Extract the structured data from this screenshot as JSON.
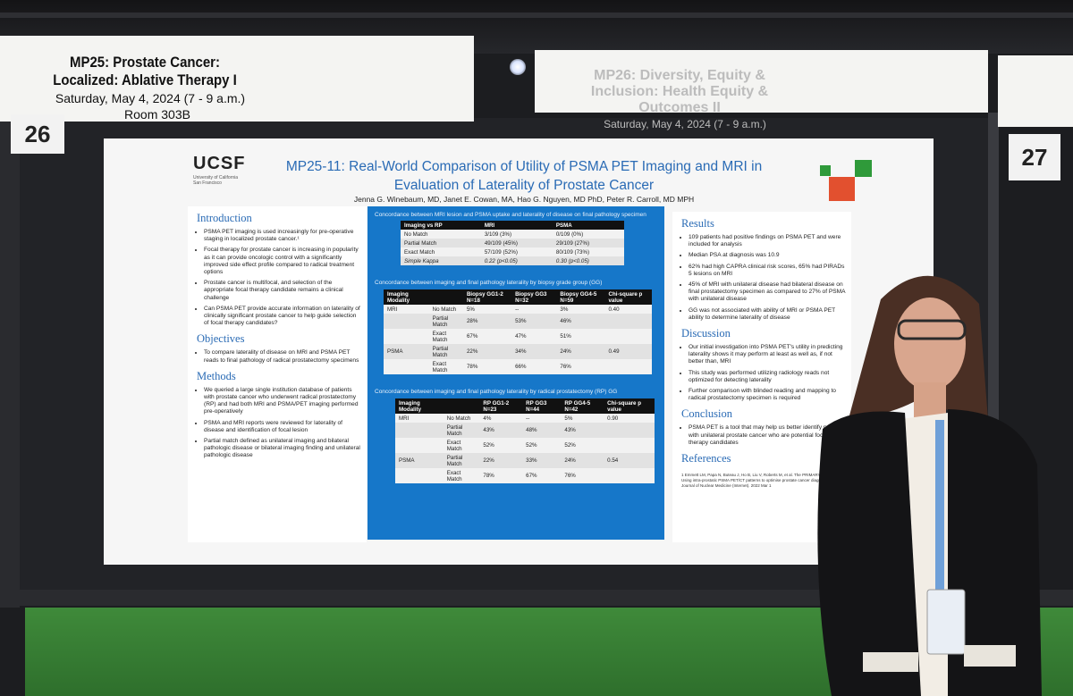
{
  "session_sign": {
    "title": "MP25: Prostate Cancer: Localized: Ablative Therapy I",
    "date": "Saturday, May 4, 2024 (7 - 9 a.m.)",
    "room": "Room 303B"
  },
  "next_sign": {
    "title": "MP26: Diversity, Equity & Inclusion: Health Equity & Outcomes II",
    "date": "Saturday, May 4, 2024 (7 - 9 a.m.)"
  },
  "board_numbers": [
    "26",
    "27"
  ],
  "poster": {
    "logo_text": "UCSF",
    "logo_subtext": "University of California San Francisco",
    "title": "MP25-11: Real-World Comparison of Utility of PSMA PET Imaging and MRI in Evaluation of Laterality of Prostate Cancer",
    "authors": "Jenna G. Winebaum, MD, Janet E. Cowan, MA, Hao G. Nguyen, MD PhD, Peter R. Carroll, MD MPH",
    "introduction": {
      "heading": "Introduction",
      "bullets": [
        "PSMA PET imaging is used increasingly for pre-operative staging in localized prostate cancer.¹",
        "Focal therapy for prostate cancer is increasing in popularity as it can provide oncologic control with a significantly improved side effect profile compared to radical treatment options",
        "Prostate cancer is multifocal, and selection of the appropriate focal therapy candidate remains a clinical challenge",
        "Can PSMA PET provide accurate information on laterality of clinically significant prostate cancer to help guide selection of focal therapy candidates?"
      ]
    },
    "objectives": {
      "heading": "Objectives",
      "bullets": [
        "To compare laterality of disease on MRI and PSMA PET reads to final pathology of radical prostatectomy specimens"
      ]
    },
    "methods": {
      "heading": "Methods",
      "bullets": [
        "We queried a large single institution database of patients with prostate cancer who underwent radical prostatectomy (RP) and had both MRI and PSMA/PET imaging performed pre-operatively",
        "PSMA and MRI reports were reviewed for laterality of disease and identification of focal lesion",
        "Partial match defined as unilateral imaging and bilateral pathologic disease or bilateral imaging finding and unilateral pathologic disease"
      ]
    },
    "table1": {
      "caption": "Concordance between MRI lesion and PSMA uptake and laterality of disease on final pathology specimen",
      "headers": [
        "Imaging vs RP",
        "MRI",
        "PSMA"
      ],
      "rows": [
        [
          "No Match",
          "3/109 (3%)",
          "0/109 (0%)"
        ],
        [
          "Partial Match",
          "49/109 (45%)",
          "29/109 (27%)"
        ],
        [
          "Exact Match",
          "57/109 (52%)",
          "80/109 (73%)"
        ],
        [
          "Simple Kappa",
          "0.22 (p<0.05)",
          "0.30 (p<0.05)"
        ]
      ]
    },
    "table2": {
      "caption": "Concordance between imaging and final pathology laterality by biopsy grade group (GG)",
      "headers": [
        "Imaging Modality",
        "",
        "Biopsy GG1-2 N=18",
        "Biopsy GG3 N=32",
        "Biopsy GG4-5 N=59",
        "Chi-square p value"
      ],
      "rows": [
        [
          "MRI",
          "No Match",
          "5%",
          "--",
          "3%",
          "0.40"
        ],
        [
          "",
          "Partial Match",
          "28%",
          "53%",
          "46%",
          ""
        ],
        [
          "",
          "Exact Match",
          "67%",
          "47%",
          "51%",
          ""
        ],
        [
          "PSMA",
          "Partial Match",
          "22%",
          "34%",
          "24%",
          "0.49"
        ],
        [
          "",
          "Exact Match",
          "78%",
          "66%",
          "76%",
          ""
        ]
      ]
    },
    "table3": {
      "caption": "Concordance between imaging and final pathology laterality by radical prostatectomy (RP) GG",
      "headers": [
        "Imaging Modality",
        "",
        "RP GG1-2 N=23",
        "RP GG3 N=44",
        "RP GG4-5 N=42",
        "Chi-square p value"
      ],
      "rows": [
        [
          "MRI",
          "No Match",
          "4%",
          "--",
          "5%",
          "0.90"
        ],
        [
          "",
          "Partial Match",
          "43%",
          "48%",
          "43%",
          ""
        ],
        [
          "",
          "Exact Match",
          "52%",
          "52%",
          "52%",
          ""
        ],
        [
          "PSMA",
          "Partial Match",
          "22%",
          "33%",
          "24%",
          "0.54"
        ],
        [
          "",
          "Exact Match",
          "78%",
          "67%",
          "76%",
          ""
        ]
      ]
    },
    "results": {
      "heading": "Results",
      "bullets": [
        "109 patients had positive findings on PSMA PET and were included for analysis",
        "Median PSA at diagnosis was 10.9",
        "62% had high CAPRA clinical risk scores, 65% had PIRADs 5 lesions on MRI",
        "45% of MRI with unilateral disease had bilateral disease on final prostatectomy specimen as compared to 27% of PSMA with unilateral disease",
        "GG was not associated with ability of MRI or PSMA PET ability to determine laterality of disease"
      ]
    },
    "discussion": {
      "heading": "Discussion",
      "bullets": [
        "Our initial investigation into PSMA PET's utility in predicting laterality shows it may perform at least as well as, if not better than, MRI",
        "This study was performed utilizing radiology reads not optimized for detecting laterality",
        "Further comparison with blinded reading and mapping to radical prostatectomy specimen is required"
      ]
    },
    "conclusion": {
      "heading": "Conclusion",
      "bullets": [
        "PSMA PET is a tool that may help us better identify patients with unilateral prostate cancer who are potential focal therapy candidates"
      ]
    },
    "references": {
      "heading": "References",
      "text": "1 Emmett LM, Papa N, Buteau J, Ho B, Liu V, Roberts M, et al. The PRIMARY score: Using intra-prostatic PSMA PET/CT patterns to optimise prostate cancer diagnosis. Journal of Nuclear Medicine (Internet). 2022 Mar 1"
    }
  },
  "colors": {
    "poster_title": "#2a6bb5",
    "center_panel": "#1677c9",
    "floor": "#3f8a3a"
  }
}
